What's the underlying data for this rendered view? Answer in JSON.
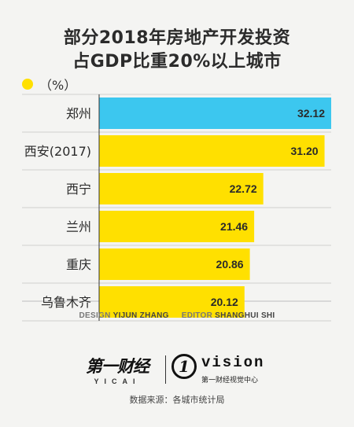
{
  "title": {
    "line1": "部分2018年房地产开发投资",
    "line2": "占GDP比重20%以上城市"
  },
  "legend": {
    "unit": "（%）",
    "color": "#ffe000"
  },
  "chart_data": {
    "type": "bar",
    "orientation": "horizontal",
    "title": "部分2018年房地产开发投资占GDP比重20%以上城市",
    "unit": "%",
    "categories": [
      "郑州",
      "西安(2017)",
      "西宁",
      "兰州",
      "重庆",
      "乌鲁木齐"
    ],
    "values": [
      32.12,
      31.2,
      22.72,
      21.46,
      20.86,
      20.12
    ],
    "value_labels": [
      "32.12",
      "31.20",
      "22.72",
      "21.46",
      "20.86",
      "20.12"
    ],
    "highlight_index": 0,
    "colors": {
      "bar": "#ffe000",
      "highlight": "#3cc7ef",
      "label": "#2a2a2a",
      "divider": "#cfcfcf",
      "axis": "#333333"
    },
    "legend": "top-left",
    "grid": false
  },
  "credits": {
    "design_label": "DESIGN",
    "design_name": "YIJUN ZHANG",
    "editor_label": "EDITOR",
    "editor_name": "SHANGHUI SHI"
  },
  "logos": {
    "yicai_cn": "第一财经",
    "yicai_en": "YICAI",
    "vision_mark": "1",
    "vision_word": "vision",
    "vision_sub": "第一财经视觉中心"
  },
  "source": "数据来源：各城市统计局"
}
